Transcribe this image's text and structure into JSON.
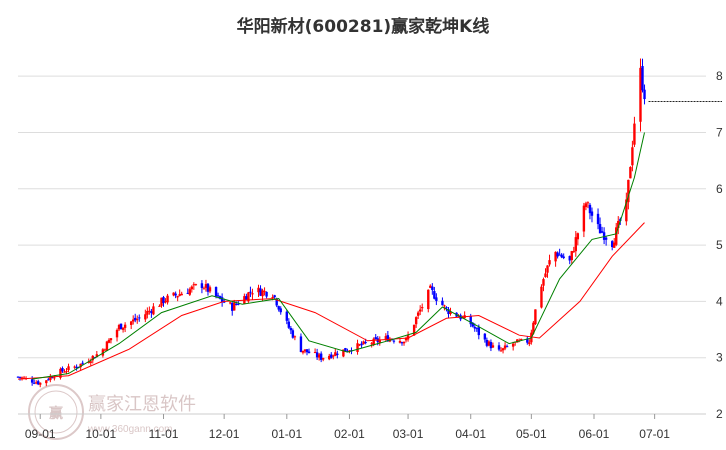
{
  "chart_data": {
    "type": "candlestick",
    "title": "华阳新材(600281)赢家乾坤K线",
    "xlabel": "",
    "ylabel": "",
    "ylim": [
      2,
      8.5
    ],
    "y_ticks": [
      "2",
      "3",
      "4",
      "5",
      "6",
      "7",
      "8"
    ],
    "x_ticks": [
      "09-01",
      "10-01",
      "11-01",
      "12-01",
      "01-01",
      "02-01",
      "03-01",
      "04-01",
      "05-01",
      "06-01",
      "07-01"
    ],
    "grid": true,
    "reference_price": 7.55,
    "colors": {
      "up": "#ff0000",
      "down": "#0000ff",
      "ma_short": "#008000",
      "ma_long": "#ff0000",
      "grid": "#dddddd"
    },
    "price_path": [
      [
        "2023-08-21",
        2.66
      ],
      [
        "2023-09-01",
        2.55
      ],
      [
        "2023-09-10",
        2.74
      ],
      [
        "2023-09-20",
        2.86
      ],
      [
        "2023-10-01",
        3.1
      ],
      [
        "2023-10-10",
        3.55
      ],
      [
        "2023-10-20",
        3.7
      ],
      [
        "2023-11-01",
        4.02
      ],
      [
        "2023-11-10",
        4.15
      ],
      [
        "2023-11-20",
        4.3
      ],
      [
        "2023-11-28",
        4.05
      ],
      [
        "2023-12-05",
        3.9
      ],
      [
        "2023-12-15",
        4.2
      ],
      [
        "2023-12-25",
        4.15
      ],
      [
        "2024-01-01",
        3.6
      ],
      [
        "2024-01-08",
        3.15
      ],
      [
        "2024-01-18",
        3.0
      ],
      [
        "2024-01-31",
        3.15
      ],
      [
        "2024-02-10",
        3.25
      ],
      [
        "2024-02-20",
        3.35
      ],
      [
        "2024-02-29",
        3.3
      ],
      [
        "2024-03-05",
        3.7
      ],
      [
        "2024-03-12",
        4.2
      ],
      [
        "2024-03-20",
        3.85
      ],
      [
        "2024-03-31",
        3.65
      ],
      [
        "2024-04-08",
        3.3
      ],
      [
        "2024-04-15",
        3.1
      ],
      [
        "2024-04-22",
        3.25
      ],
      [
        "2024-04-30",
        3.3
      ],
      [
        "2024-05-05",
        4.2
      ],
      [
        "2024-05-12",
        4.9
      ],
      [
        "2024-05-20",
        4.7
      ],
      [
        "2024-05-28",
        5.75
      ],
      [
        "2024-06-03",
        5.3
      ],
      [
        "2024-06-10",
        5.05
      ],
      [
        "2024-06-17",
        5.7
      ],
      [
        "2024-06-21",
        7.2
      ],
      [
        "2024-06-24",
        8.05
      ],
      [
        "2024-06-26",
        7.7
      ]
    ],
    "ma_short": [
      [
        "2023-08-28",
        2.62
      ],
      [
        "2023-09-15",
        2.72
      ],
      [
        "2023-10-10",
        3.25
      ],
      [
        "2023-10-31",
        3.8
      ],
      [
        "2023-11-25",
        4.1
      ],
      [
        "2023-12-10",
        3.95
      ],
      [
        "2023-12-28",
        4.05
      ],
      [
        "2024-01-12",
        3.3
      ],
      [
        "2024-01-31",
        3.1
      ],
      [
        "2024-02-20",
        3.3
      ],
      [
        "2024-03-05",
        3.45
      ],
      [
        "2024-03-18",
        3.9
      ],
      [
        "2024-04-05",
        3.55
      ],
      [
        "2024-04-20",
        3.25
      ],
      [
        "2024-05-01",
        3.35
      ],
      [
        "2024-05-15",
        4.4
      ],
      [
        "2024-05-31",
        5.1
      ],
      [
        "2024-06-12",
        5.2
      ],
      [
        "2024-06-21",
        6.2
      ],
      [
        "2024-06-26",
        7.0
      ]
    ],
    "ma_long": [
      [
        "2023-08-21",
        2.62
      ],
      [
        "2023-09-15",
        2.68
      ],
      [
        "2023-10-15",
        3.15
      ],
      [
        "2023-11-10",
        3.75
      ],
      [
        "2023-12-01",
        4.0
      ],
      [
        "2023-12-25",
        4.05
      ],
      [
        "2024-01-15",
        3.8
      ],
      [
        "2024-02-10",
        3.3
      ],
      [
        "2024-03-01",
        3.35
      ],
      [
        "2024-03-20",
        3.7
      ],
      [
        "2024-04-05",
        3.75
      ],
      [
        "2024-04-25",
        3.4
      ],
      [
        "2024-05-05",
        3.35
      ],
      [
        "2024-05-25",
        4.0
      ],
      [
        "2024-06-10",
        4.8
      ],
      [
        "2024-06-26",
        5.4
      ]
    ]
  },
  "watermark": {
    "logo_text": "赢",
    "brand": "赢家江恩软件",
    "url": "www.360gann.com"
  }
}
